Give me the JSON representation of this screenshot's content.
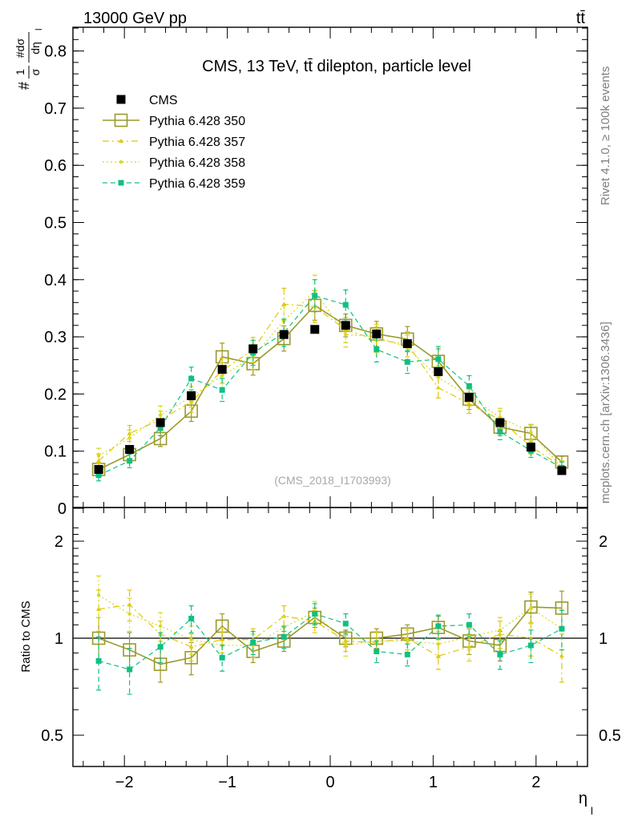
{
  "header": {
    "energy_label": "13000 GeV pp",
    "process_label": "tt̄",
    "side_label_top": "Rivet 4.1.0, ≥ 100k events",
    "side_label_bottom": "mcplots.cern.ch [arXiv:1306.3436]"
  },
  "chart_data": [
    {
      "type": "scatter",
      "panel": "main",
      "title": "CMS, 13 TeV, tt̄ dilepton, particle level",
      "watermark": "(CMS_2018_I1703993)",
      "ylabel": "#1/#sigma d#sigma/d#eta",
      "ylabel_parts": {
        "prefix": "#",
        "num1": "1",
        "den1": "σ",
        "num2": "#dσ",
        "den2": "dη",
        "sub": "l"
      },
      "xlim": [
        -2.5,
        2.5
      ],
      "ylim": [
        0,
        0.85
      ],
      "yticks": [
        "0",
        "0.1",
        "0.2",
        "0.3",
        "0.4",
        "0.5",
        "0.6",
        "0.7",
        "0.8"
      ],
      "x": [
        -2.25,
        -1.95,
        -1.65,
        -1.35,
        -1.05,
        -0.75,
        -0.45,
        -0.15,
        0.15,
        0.45,
        0.75,
        1.05,
        1.35,
        1.65,
        1.95,
        2.25
      ],
      "series": [
        {
          "name": "CMS",
          "color": "#000000",
          "style": "data",
          "values": [
            0.068,
            0.103,
            0.15,
            0.197,
            0.243,
            0.279,
            0.304,
            0.313,
            0.32,
            0.305,
            0.288,
            0.239,
            0.194,
            0.15,
            0.107,
            0.066
          ]
        },
        {
          "name": "Pythia 6.428 350",
          "color": "#9a9a2a",
          "style": "solid-open-square",
          "values": [
            0.068,
            0.094,
            0.122,
            0.17,
            0.265,
            0.253,
            0.297,
            0.355,
            0.32,
            0.305,
            0.296,
            0.257,
            0.191,
            0.142,
            0.131,
            0.081
          ],
          "errors": [
            0.012,
            0.012,
            0.014,
            0.018,
            0.024,
            0.02,
            0.022,
            0.026,
            0.02,
            0.022,
            0.022,
            0.022,
            0.018,
            0.015,
            0.015,
            0.01
          ]
        },
        {
          "name": "Pythia 6.428 357",
          "color": "#e0c800",
          "style": "dashdot-triangle",
          "values": [
            0.083,
            0.131,
            0.155,
            0.186,
            0.241,
            0.277,
            0.357,
            0.353,
            0.312,
            0.295,
            0.287,
            0.211,
            0.183,
            0.155,
            0.108,
            0.073
          ],
          "errors": [
            0.012,
            0.014,
            0.015,
            0.018,
            0.022,
            0.022,
            0.028,
            0.028,
            0.022,
            0.022,
            0.022,
            0.018,
            0.017,
            0.015,
            0.013,
            0.01
          ]
        },
        {
          "name": "Pythia 6.428 358",
          "color": "#d8d820",
          "style": "dotted-dot",
          "values": [
            0.092,
            0.123,
            0.163,
            0.195,
            0.232,
            0.265,
            0.328,
            0.38,
            0.304,
            0.3,
            0.281,
            0.229,
            0.196,
            0.159,
            0.133,
            0.071
          ],
          "errors": [
            0.013,
            0.014,
            0.016,
            0.018,
            0.022,
            0.022,
            0.026,
            0.028,
            0.022,
            0.022,
            0.022,
            0.02,
            0.018,
            0.016,
            0.014,
            0.01
          ]
        },
        {
          "name": "Pythia 6.428 359",
          "color": "#10c080",
          "style": "dashed-filled-square",
          "values": [
            0.058,
            0.083,
            0.141,
            0.227,
            0.207,
            0.272,
            0.307,
            0.372,
            0.356,
            0.278,
            0.256,
            0.261,
            0.214,
            0.134,
            0.101,
            0.071
          ],
          "errors": [
            0.01,
            0.012,
            0.014,
            0.02,
            0.02,
            0.022,
            0.024,
            0.028,
            0.026,
            0.022,
            0.02,
            0.022,
            0.018,
            0.014,
            0.012,
            0.01
          ]
        }
      ],
      "legend_position": "top-left"
    },
    {
      "type": "scatter",
      "panel": "ratio",
      "ylabel": "Ratio to CMS",
      "xlabel": "η",
      "xlabel_sub": "l",
      "xlim": [
        -2.5,
        2.5
      ],
      "ylim": [
        0.4,
        2.3
      ],
      "yscale": "log",
      "yticks": [
        "0.5",
        "1",
        "2"
      ],
      "xticks": [
        "−2",
        "−1",
        "0",
        "1",
        "2"
      ],
      "xtick_values": [
        -2,
        -1,
        0,
        1,
        2
      ],
      "reference_line": 1,
      "x": [
        -2.25,
        -1.95,
        -1.65,
        -1.35,
        -1.05,
        -0.75,
        -0.45,
        -0.15,
        0.15,
        0.45,
        0.75,
        1.05,
        1.35,
        1.65,
        1.95,
        2.25
      ],
      "series": [
        {
          "name": "Pythia 6.428 350",
          "color": "#9a9a2a",
          "style": "solid-open-square",
          "values": [
            1.0,
            0.92,
            0.83,
            0.87,
            1.09,
            0.91,
            0.98,
            1.16,
            1.0,
            1.0,
            1.03,
            1.08,
            0.98,
            0.95,
            1.25,
            1.24
          ],
          "errors": [
            0.16,
            0.12,
            0.1,
            0.1,
            0.1,
            0.07,
            0.07,
            0.08,
            0.06,
            0.07,
            0.07,
            0.09,
            0.09,
            0.1,
            0.14,
            0.16
          ]
        },
        {
          "name": "Pythia 6.428 357",
          "color": "#e0c800",
          "style": "dashdot-triangle",
          "values": [
            1.23,
            1.27,
            1.03,
            0.94,
            0.99,
            0.99,
            1.17,
            1.13,
            0.98,
            0.97,
            1.0,
            0.88,
            0.94,
            1.03,
            1.0,
            0.88
          ],
          "errors": [
            0.18,
            0.14,
            0.1,
            0.09,
            0.09,
            0.08,
            0.09,
            0.09,
            0.07,
            0.07,
            0.08,
            0.08,
            0.09,
            0.1,
            0.12,
            0.15
          ]
        },
        {
          "name": "Pythia 6.428 358",
          "color": "#d8d820",
          "style": "dotted-dot",
          "values": [
            1.36,
            1.19,
            1.09,
            0.99,
            0.95,
            0.95,
            1.08,
            1.21,
            0.95,
            0.98,
            0.98,
            0.96,
            1.01,
            1.06,
            1.24,
            1.07
          ],
          "errors": [
            0.2,
            0.14,
            0.11,
            0.1,
            0.09,
            0.08,
            0.09,
            0.09,
            0.07,
            0.07,
            0.08,
            0.09,
            0.09,
            0.1,
            0.13,
            0.15
          ]
        },
        {
          "name": "Pythia 6.428 359",
          "color": "#10c080",
          "style": "dashed-filled-square",
          "values": [
            0.85,
            0.8,
            0.94,
            1.15,
            0.87,
            0.97,
            1.01,
            1.19,
            1.11,
            0.91,
            0.89,
            1.09,
            1.1,
            0.89,
            0.95,
            1.07
          ],
          "errors": [
            0.16,
            0.13,
            0.1,
            0.11,
            0.08,
            0.08,
            0.08,
            0.09,
            0.08,
            0.07,
            0.07,
            0.09,
            0.09,
            0.09,
            0.11,
            0.15
          ]
        }
      ]
    }
  ]
}
